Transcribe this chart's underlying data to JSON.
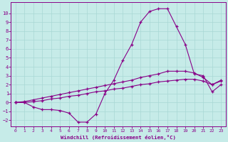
{
  "xlabel": "Windchill (Refroidissement éolien,°C)",
  "xlim": [
    -0.5,
    23.5
  ],
  "ylim": [
    -2.7,
    11.2
  ],
  "yticks": [
    -2,
    -1,
    0,
    1,
    2,
    3,
    4,
    5,
    6,
    7,
    8,
    9,
    10
  ],
  "xticks": [
    0,
    1,
    2,
    3,
    4,
    5,
    6,
    7,
    8,
    9,
    10,
    11,
    12,
    13,
    14,
    15,
    16,
    17,
    18,
    19,
    20,
    21,
    22,
    23
  ],
  "bg_color": "#c6ebe8",
  "line_color": "#880088",
  "curve1_x": [
    0,
    1,
    2,
    3,
    4,
    5,
    6,
    7,
    8,
    9,
    10,
    11,
    12,
    13,
    14,
    15,
    16,
    17,
    18,
    19,
    20,
    21,
    22,
    23
  ],
  "curve1_y": [
    0.0,
    0.0,
    -0.5,
    -0.8,
    -0.8,
    -0.9,
    -1.2,
    -2.2,
    -2.2,
    -1.3,
    1.0,
    2.5,
    4.7,
    6.5,
    9.0,
    10.2,
    10.5,
    10.5,
    8.5,
    6.5,
    3.2,
    3.0,
    1.2,
    2.0
  ],
  "curve2_x": [
    0,
    1,
    2,
    3,
    4,
    5,
    6,
    7,
    8,
    9,
    10,
    11,
    12,
    13,
    14,
    15,
    16,
    17,
    18,
    19,
    20,
    21,
    22,
    23
  ],
  "curve2_y": [
    0.0,
    0.1,
    0.3,
    0.5,
    0.7,
    0.9,
    1.1,
    1.3,
    1.5,
    1.7,
    1.9,
    2.1,
    2.3,
    2.5,
    2.8,
    3.0,
    3.2,
    3.5,
    3.5,
    3.5,
    3.3,
    2.8,
    2.0,
    2.5
  ],
  "curve3_x": [
    0,
    1,
    2,
    3,
    4,
    5,
    6,
    7,
    8,
    9,
    10,
    11,
    12,
    13,
    14,
    15,
    16,
    17,
    18,
    19,
    20,
    21,
    22,
    23
  ],
  "curve3_y": [
    0.0,
    0.0,
    0.1,
    0.2,
    0.4,
    0.5,
    0.7,
    0.8,
    1.0,
    1.2,
    1.3,
    1.5,
    1.6,
    1.8,
    2.0,
    2.1,
    2.3,
    2.4,
    2.5,
    2.6,
    2.6,
    2.4,
    2.0,
    2.4
  ]
}
